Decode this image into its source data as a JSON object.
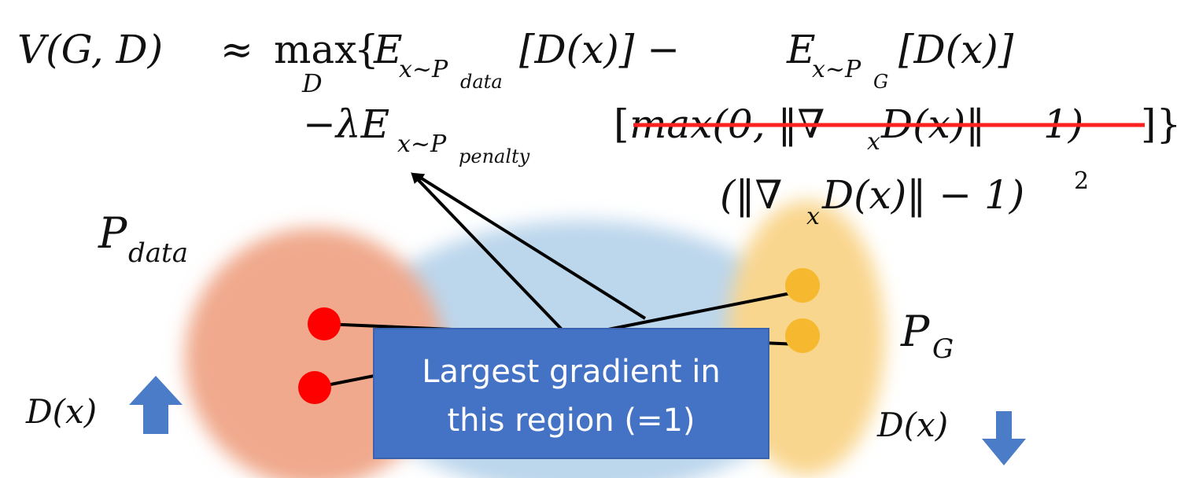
{
  "formula": {
    "lhs": "V(G, D)",
    "approx": "≈",
    "max_label": "max",
    "max_sub": "D",
    "open_brace": "{",
    "E1": "E",
    "E1_sub_x": "x~P",
    "E1_sub_data": "data",
    "D1": "[D(x)] −",
    "E2": "E",
    "E2_sub_x": "x~P",
    "E2_sub_G": "G",
    "D2": "[D(x)]",
    "lambda_term": "−λE",
    "E3_sub_x": "x~P",
    "E3_sub_penalty": "penalty",
    "bracket_open": "[",
    "struck_term": "max(0, ‖∇",
    "struck_sub": "x",
    "struck_term2": "D(x)‖ − 1)",
    "close": "]}",
    "replacement": "(‖∇",
    "replacement_sub": "x",
    "replacement2": "D(x)‖ − 1)",
    "replacement_sup": "2"
  },
  "labels": {
    "p_data": "P",
    "p_data_sub": "data",
    "p_g": "P",
    "p_g_sub": "G",
    "dx_left": "D(x)",
    "dx_right": "D(x)"
  },
  "callout": {
    "line1": "Largest gradient in",
    "line2": "this region (=1)"
  },
  "colors": {
    "p_data_blob": "#f0a98c",
    "middle_blob": "#bcd6ec",
    "p_g_blob": "#f9d68e",
    "red_points": "#ff0000",
    "yellow_points": "#f5b82e",
    "callout_fill": "#4472c4",
    "arrow_fill": "#4a7cc7",
    "strike": "#ff2020"
  }
}
